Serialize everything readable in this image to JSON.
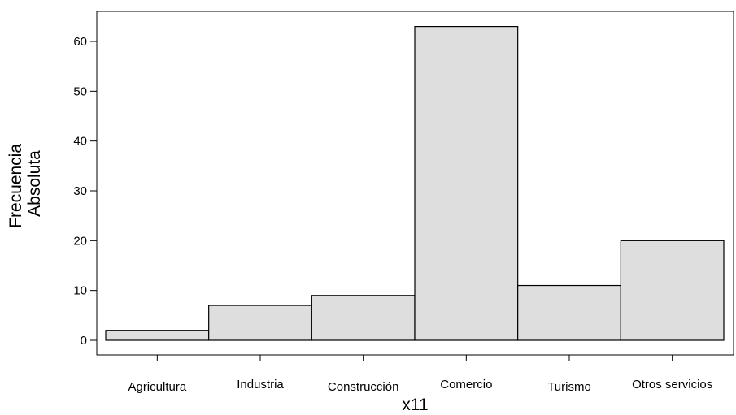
{
  "chart_data": {
    "type": "bar",
    "categories": [
      "Agricultura",
      "Industria",
      "Construcción",
      "Comercio",
      "Turismo",
      "Otros servicios"
    ],
    "series": [
      {
        "values": [
          2,
          7,
          9,
          63,
          11,
          20
        ]
      }
    ],
    "xlabel": "x11",
    "ylabel_lines": [
      "Frecuencia",
      "Absoluta"
    ],
    "ylim": [
      0,
      63
    ],
    "yticks": [
      0,
      10,
      20,
      30,
      40,
      50,
      60
    ],
    "grid": false,
    "legend": "none",
    "colors": {
      "bar_fill": "#dedede",
      "bar_stroke": "#000000"
    }
  }
}
